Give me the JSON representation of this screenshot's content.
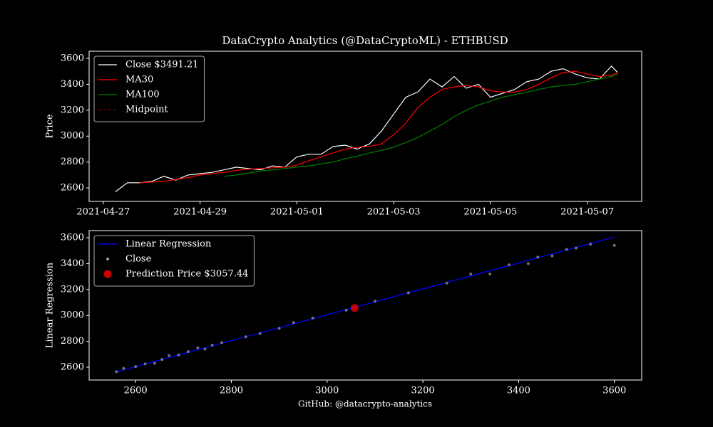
{
  "title": "DataCrypto Analytics (@DataCryptoML) - ETHBUSD",
  "footer": "GitHub: @datacrypto-analytics",
  "chart_data": [
    {
      "type": "line",
      "ylabel": "Price",
      "legend": "upper left",
      "x": [
        "2021-04-27 06:00",
        "2021-04-27 12:00",
        "2021-04-27 18:00",
        "2021-04-28 00:00",
        "2021-04-28 06:00",
        "2021-04-28 12:00",
        "2021-04-28 18:00",
        "2021-04-29 00:00",
        "2021-04-29 06:00",
        "2021-04-29 12:00",
        "2021-04-29 18:00",
        "2021-04-30 00:00",
        "2021-04-30 06:00",
        "2021-04-30 12:00",
        "2021-04-30 18:00",
        "2021-05-01 00:00",
        "2021-05-01 06:00",
        "2021-05-01 12:00",
        "2021-05-01 18:00",
        "2021-05-02 00:00",
        "2021-05-02 06:00",
        "2021-05-02 12:00",
        "2021-05-02 18:00",
        "2021-05-03 00:00",
        "2021-05-03 06:00",
        "2021-05-03 12:00",
        "2021-05-03 18:00",
        "2021-05-04 00:00",
        "2021-05-04 06:00",
        "2021-05-04 12:00",
        "2021-05-04 18:00",
        "2021-05-05 00:00",
        "2021-05-05 06:00",
        "2021-05-05 12:00",
        "2021-05-05 18:00",
        "2021-05-06 00:00",
        "2021-05-06 06:00",
        "2021-05-06 12:00",
        "2021-05-06 18:00",
        "2021-05-07 00:00",
        "2021-05-07 06:00",
        "2021-05-07 12:00",
        "2021-05-07 15:00"
      ],
      "series": [
        {
          "name": "Close $3491.21",
          "color": "#ffffff",
          "values": [
            2570,
            2640,
            2640,
            2650,
            2690,
            2660,
            2700,
            2710,
            2720,
            2740,
            2760,
            2750,
            2740,
            2770,
            2760,
            2840,
            2860,
            2860,
            2920,
            2930,
            2900,
            2940,
            3040,
            3170,
            3300,
            3340,
            3440,
            3380,
            3460,
            3370,
            3400,
            3300,
            3330,
            3360,
            3420,
            3440,
            3500,
            3520,
            3480,
            3450,
            3440,
            3540,
            3491.21
          ]
        },
        {
          "name": "MA30",
          "color": "#ff0000",
          "values": [
            null,
            null,
            2640,
            2645,
            2650,
            2665,
            2680,
            2700,
            2710,
            2720,
            2735,
            2745,
            2750,
            2755,
            2760,
            2775,
            2810,
            2840,
            2870,
            2900,
            2915,
            2920,
            2940,
            3010,
            3100,
            3220,
            3300,
            3360,
            3380,
            3390,
            3380,
            3350,
            3340,
            3340,
            3360,
            3400,
            3450,
            3490,
            3500,
            3480,
            3460,
            3470,
            3490
          ]
        },
        {
          "name": "MA100",
          "color": "#008000",
          "values": [
            null,
            null,
            null,
            null,
            null,
            null,
            null,
            null,
            null,
            2690,
            2700,
            2715,
            2730,
            2740,
            2750,
            2760,
            2770,
            2785,
            2800,
            2825,
            2845,
            2870,
            2890,
            2915,
            2950,
            2990,
            3040,
            3090,
            3150,
            3200,
            3240,
            3270,
            3300,
            3320,
            3340,
            3360,
            3380,
            3390,
            3400,
            3420,
            3440,
            3460,
            3480
          ]
        },
        {
          "name": "Midpoint",
          "color": "#8b0000",
          "dashed": true,
          "values": [
            null,
            null,
            null,
            null,
            null,
            null,
            null,
            null,
            null,
            null,
            null,
            null,
            null,
            null,
            null,
            null,
            null,
            null,
            null,
            null,
            null,
            null,
            null,
            null,
            null,
            null,
            null,
            null,
            null,
            null,
            null,
            null,
            null,
            null,
            null,
            null,
            null,
            null,
            null,
            null,
            null,
            null,
            null
          ]
        }
      ],
      "xlim": [
        "2021-04-26 17:00",
        "2021-05-08 03:00"
      ],
      "xticks": [
        "2021-04-27",
        "2021-04-29",
        "2021-05-01",
        "2021-05-03",
        "2021-05-05",
        "2021-05-07"
      ],
      "ylim": [
        2496,
        3655
      ],
      "yticks": [
        2600,
        2800,
        3000,
        3200,
        3400,
        3600
      ]
    },
    {
      "type": "scatter",
      "ylabel": "Linear Regression",
      "legend": "upper left",
      "series": [
        {
          "name": "Linear Regression",
          "kind": "line",
          "color": "#0000ff",
          "x": [
            2560,
            3600
          ],
          "values": [
            2565,
            3605
          ]
        },
        {
          "name": "Close",
          "kind": "points",
          "color": "#a0a0a0",
          "x": [
            2560,
            2575,
            2600,
            2620,
            2640,
            2655,
            2670,
            2690,
            2710,
            2730,
            2745,
            2760,
            2780,
            2830,
            2860,
            2900,
            2930,
            2970,
            3040,
            3100,
            3170,
            3250,
            3300,
            3340,
            3380,
            3420,
            3440,
            3470,
            3500,
            3520,
            3550,
            3600
          ],
          "values": [
            2565,
            2590,
            2605,
            2625,
            2630,
            2660,
            2690,
            2695,
            2720,
            2750,
            2740,
            2770,
            2790,
            2835,
            2860,
            2900,
            2945,
            2980,
            3040,
            3110,
            3175,
            3250,
            3320,
            3320,
            3390,
            3400,
            3450,
            3460,
            3510,
            3520,
            3550,
            3540
          ]
        },
        {
          "name": "Prediction Price $3057.44",
          "kind": "big",
          "color": "#cc0000",
          "x": [
            3057.44
          ],
          "values": [
            3057.44
          ]
        }
      ],
      "xlim": [
        2503,
        3657
      ],
      "xticks": [
        2600,
        2800,
        3000,
        3200,
        3400,
        3600
      ],
      "ylim": [
        2501,
        3655
      ],
      "yticks": [
        2600,
        2800,
        3000,
        3200,
        3400,
        3600
      ]
    }
  ]
}
